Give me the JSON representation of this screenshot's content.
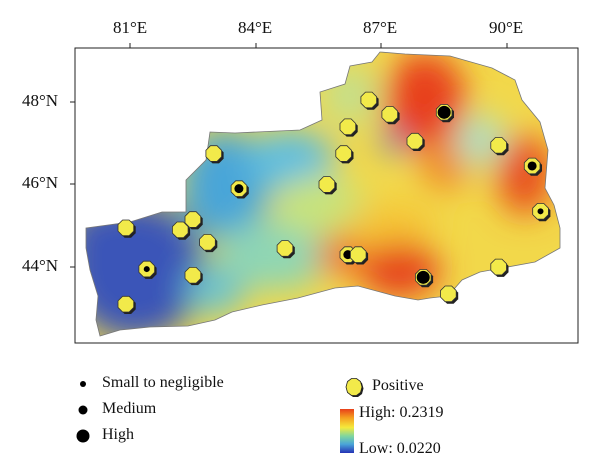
{
  "axes": {
    "lon_labels": [
      "81°E",
      "84°E",
      "87°E",
      "90°E"
    ],
    "lat_labels": [
      "48°N",
      "46°N",
      "44°N"
    ]
  },
  "legend": {
    "dot_labels": [
      "Small to negligible",
      "Medium",
      "High"
    ],
    "positive_label": "Positive",
    "high_label": "High: 0.2319",
    "low_label": "Low: 0.0220"
  },
  "map": {
    "colormap": [
      "#3a55b8",
      "#4aa5d8",
      "#7ed5a0",
      "#f5ea3c",
      "#f5a020",
      "#e8401a"
    ],
    "stations": [
      {
        "lon": 80.9,
        "lat": 44.95,
        "significance": "none"
      },
      {
        "lon": 81.4,
        "lat": 43.95,
        "significance": "small"
      },
      {
        "lon": 80.9,
        "lat": 43.1,
        "significance": "none"
      },
      {
        "lon": 82.2,
        "lat": 44.9,
        "significance": "none"
      },
      {
        "lon": 82.5,
        "lat": 45.15,
        "significance": "none"
      },
      {
        "lon": 82.85,
        "lat": 44.6,
        "significance": "none"
      },
      {
        "lon": 82.5,
        "lat": 43.8,
        "significance": "none"
      },
      {
        "lon": 83.0,
        "lat": 46.75,
        "significance": "none"
      },
      {
        "lon": 83.6,
        "lat": 45.9,
        "significance": "medium"
      },
      {
        "lon": 84.7,
        "lat": 44.45,
        "significance": "none"
      },
      {
        "lon": 85.7,
        "lat": 46.0,
        "significance": "none"
      },
      {
        "lon": 86.1,
        "lat": 46.75,
        "significance": "none"
      },
      {
        "lon": 86.2,
        "lat": 47.4,
        "significance": "none"
      },
      {
        "lon": 86.7,
        "lat": 48.05,
        "significance": "none"
      },
      {
        "lon": 87.2,
        "lat": 47.7,
        "significance": "none"
      },
      {
        "lon": 86.2,
        "lat": 44.3,
        "significance": "medium"
      },
      {
        "lon": 86.45,
        "lat": 44.3,
        "significance": "none"
      },
      {
        "lon": 87.8,
        "lat": 47.05,
        "significance": "none"
      },
      {
        "lon": 88.5,
        "lat": 47.75,
        "significance": "high"
      },
      {
        "lon": 88.0,
        "lat": 43.75,
        "significance": "high"
      },
      {
        "lon": 88.6,
        "lat": 43.35,
        "significance": "none"
      },
      {
        "lon": 89.8,
        "lat": 46.95,
        "significance": "none"
      },
      {
        "lon": 89.8,
        "lat": 44.0,
        "significance": "none"
      },
      {
        "lon": 90.6,
        "lat": 46.45,
        "significance": "medium"
      },
      {
        "lon": 90.8,
        "lat": 45.35,
        "significance": "small"
      }
    ]
  }
}
